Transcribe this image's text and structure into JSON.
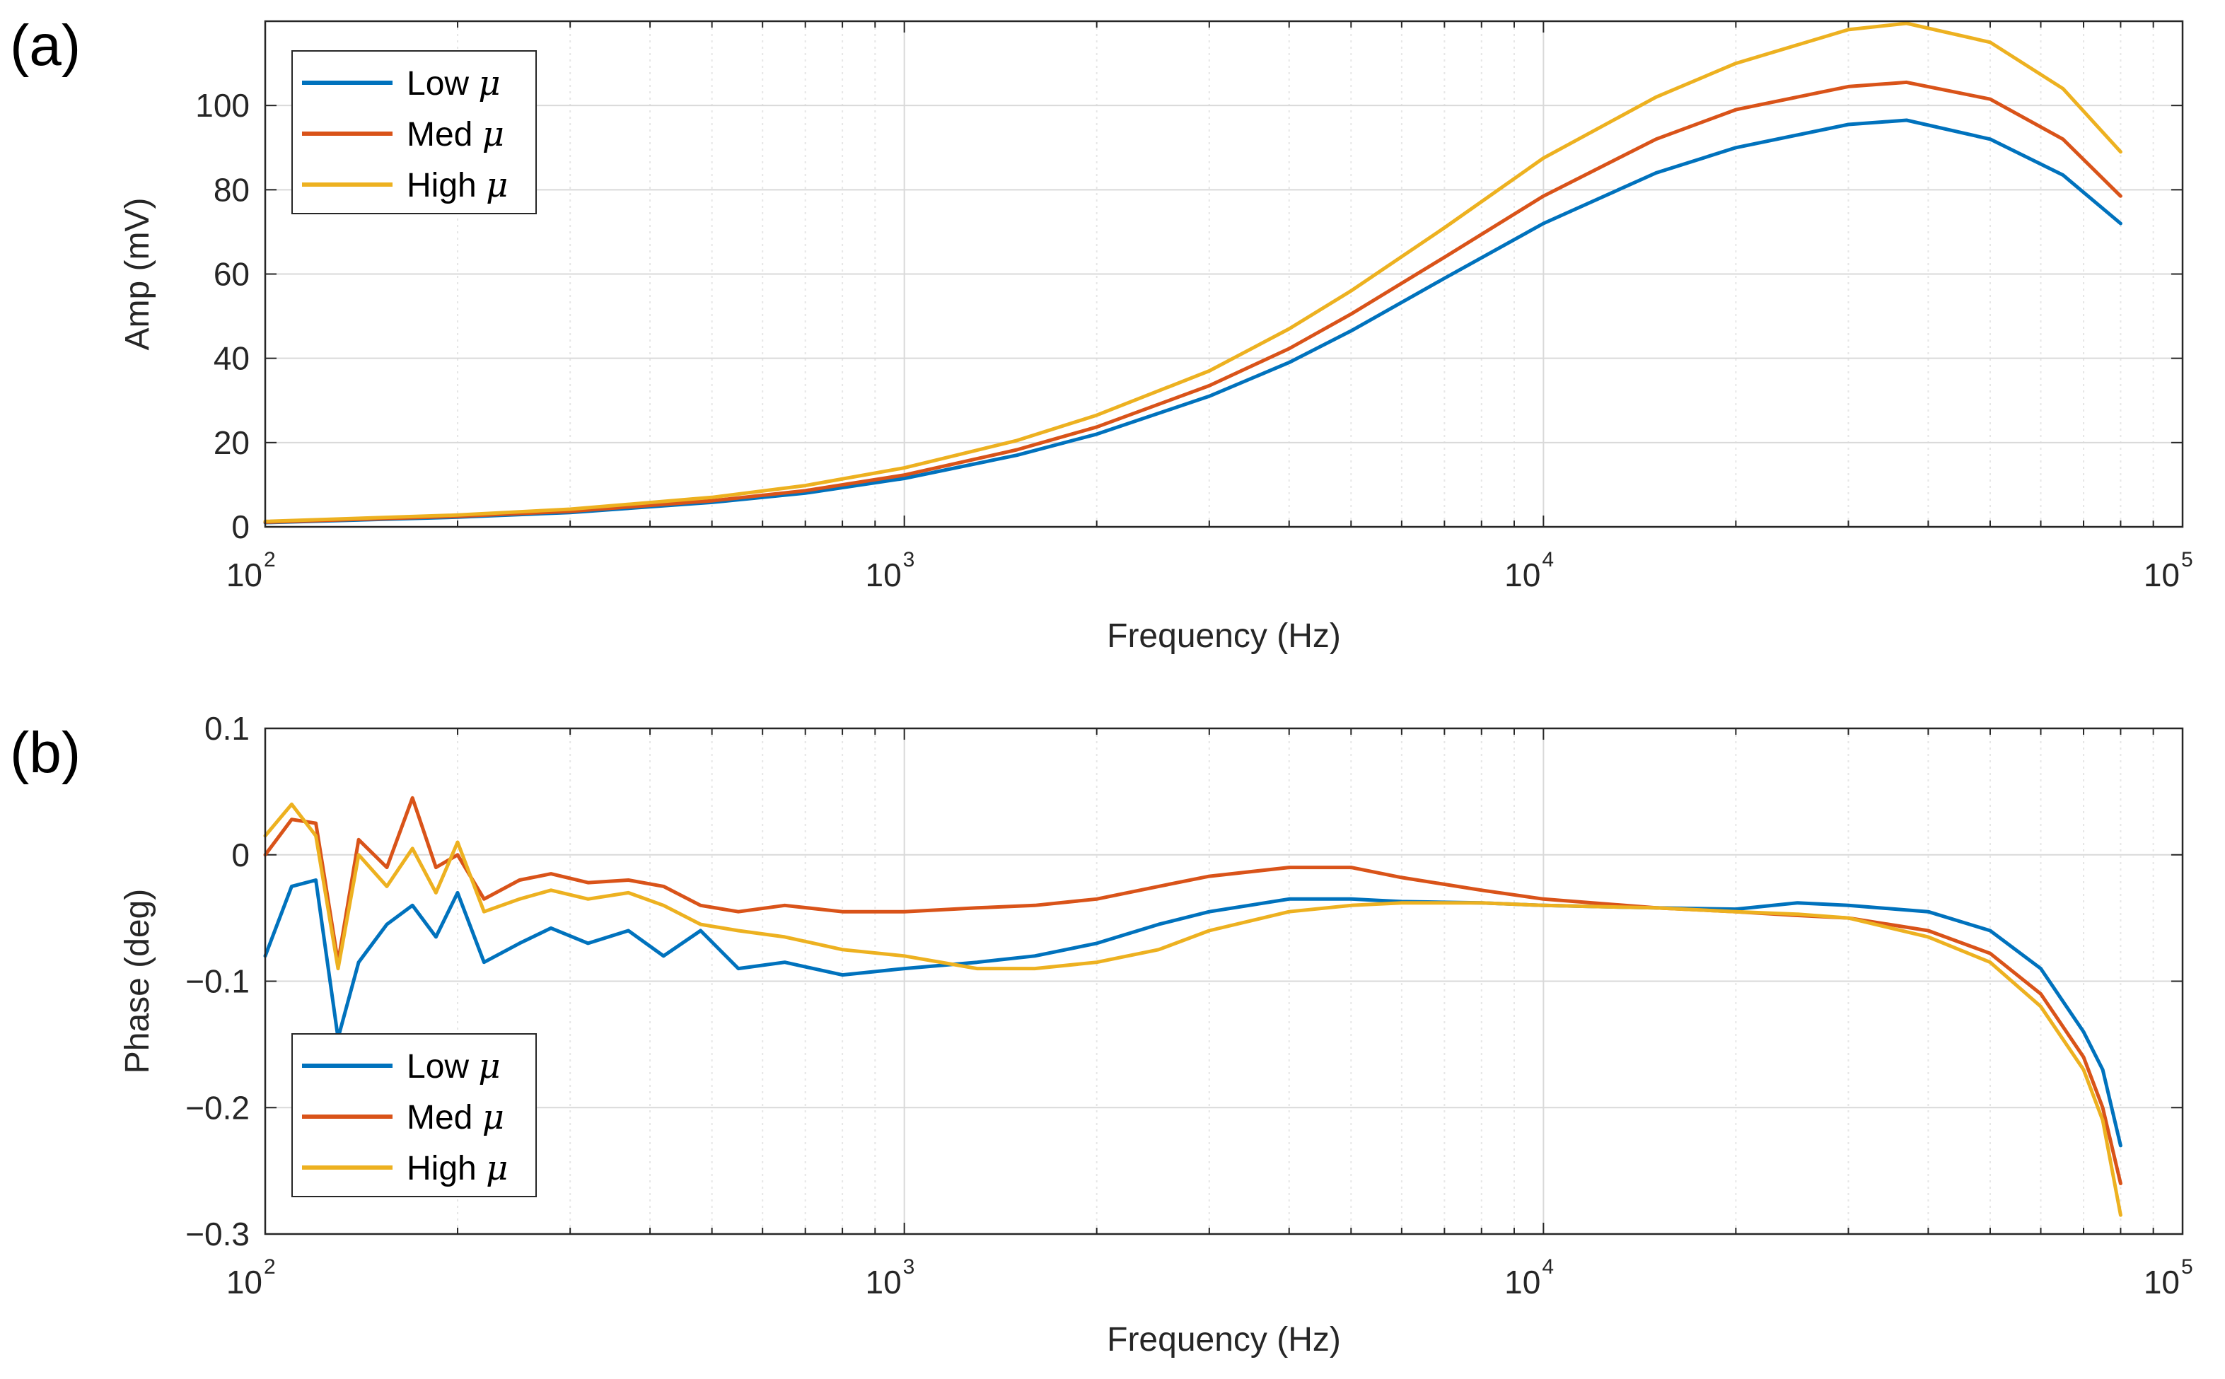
{
  "figure_labels": {
    "a": "(a)",
    "b": "(b)"
  },
  "chart_data": [
    {
      "type": "line",
      "panel": "(a)",
      "xscale": "log",
      "xlabel": "Frequency (Hz)",
      "ylabel": "Amp (mV)",
      "xlim": [
        100,
        100000
      ],
      "ylim": [
        0,
        120
      ],
      "grid": true,
      "x_ticks": [
        {
          "base": "10",
          "exp": "2"
        },
        {
          "base": "10",
          "exp": "3"
        },
        {
          "base": "10",
          "exp": "4"
        },
        {
          "base": "10",
          "exp": "5"
        }
      ],
      "y_tick_values": [
        0,
        20,
        40,
        60,
        80,
        100
      ],
      "y_tick_labels": [
        "0",
        "20",
        "40",
        "60",
        "80",
        "100"
      ],
      "legend": {
        "location": "top-left",
        "symbol": "μ"
      },
      "series": [
        {
          "name": "Low",
          "color": "#0072BD",
          "x": [
            100,
            200,
            300,
            500,
            700,
            1000,
            1500,
            2000,
            3000,
            4000,
            5000,
            7000,
            10000,
            15000,
            20000,
            30000,
            37000,
            50000,
            65000,
            80000
          ],
          "y": [
            1.0,
            2.3,
            3.4,
            5.8,
            8.0,
            11.5,
            17.0,
            22.0,
            31.0,
            39.0,
            46.5,
            59.0,
            72.0,
            84.0,
            90.0,
            95.5,
            96.5,
            92.0,
            83.5,
            72.0
          ]
        },
        {
          "name": "Med",
          "color": "#D95319",
          "x": [
            100,
            200,
            300,
            500,
            700,
            1000,
            1500,
            2000,
            3000,
            4000,
            5000,
            7000,
            10000,
            15000,
            20000,
            30000,
            37000,
            50000,
            65000,
            80000
          ],
          "y": [
            1.1,
            2.5,
            3.7,
            6.2,
            8.6,
            12.3,
            18.3,
            23.7,
            33.5,
            42.3,
            50.5,
            64.0,
            78.5,
            92.0,
            99.0,
            104.5,
            105.5,
            101.5,
            92.0,
            78.5
          ]
        },
        {
          "name": "High",
          "color": "#EDB120",
          "x": [
            100,
            200,
            300,
            500,
            700,
            1000,
            1500,
            2000,
            3000,
            4000,
            5000,
            7000,
            10000,
            15000,
            20000,
            30000,
            37000,
            50000,
            65000,
            80000
          ],
          "y": [
            1.3,
            2.8,
            4.2,
            7.0,
            9.8,
            14.0,
            20.5,
            26.5,
            37.0,
            47.0,
            56.0,
            71.0,
            87.5,
            102.0,
            110.0,
            118.0,
            119.5,
            115.0,
            104.0,
            89.0
          ]
        }
      ]
    },
    {
      "type": "line",
      "panel": "(b)",
      "xscale": "log",
      "xlabel": "Frequency (Hz)",
      "ylabel": "Phase (deg)",
      "xlim": [
        100,
        100000
      ],
      "ylim": [
        -0.3,
        0.1
      ],
      "grid": true,
      "x_ticks": [
        {
          "base": "10",
          "exp": "2"
        },
        {
          "base": "10",
          "exp": "3"
        },
        {
          "base": "10",
          "exp": "4"
        },
        {
          "base": "10",
          "exp": "5"
        }
      ],
      "y_tick_values": [
        -0.3,
        -0.2,
        -0.1,
        0,
        0.1
      ],
      "y_tick_labels": [
        "−0.3",
        "−0.2",
        "−0.1",
        "0",
        "0.1"
      ],
      "legend": {
        "location": "bottom-left",
        "symbol": "μ"
      },
      "series": [
        {
          "name": "Low",
          "color": "#0072BD",
          "x": [
            100,
            110,
            120,
            130,
            140,
            155,
            170,
            185,
            200,
            220,
            250,
            280,
            320,
            370,
            420,
            480,
            550,
            650,
            800,
            1000,
            1300,
            1600,
            2000,
            2500,
            3000,
            4000,
            5000,
            6000,
            8000,
            10000,
            15000,
            20000,
            25000,
            30000,
            40000,
            50000,
            60000,
            70000,
            75000,
            80000
          ],
          "y": [
            -0.08,
            -0.025,
            -0.02,
            -0.145,
            -0.085,
            -0.055,
            -0.04,
            -0.065,
            -0.03,
            -0.085,
            -0.07,
            -0.058,
            -0.07,
            -0.06,
            -0.08,
            -0.06,
            -0.09,
            -0.085,
            -0.095,
            -0.09,
            -0.085,
            -0.08,
            -0.07,
            -0.055,
            -0.045,
            -0.035,
            -0.035,
            -0.037,
            -0.038,
            -0.04,
            -0.042,
            -0.043,
            -0.038,
            -0.04,
            -0.045,
            -0.06,
            -0.09,
            -0.14,
            -0.17,
            -0.23
          ]
        },
        {
          "name": "Med",
          "color": "#D95319",
          "x": [
            100,
            110,
            120,
            130,
            140,
            155,
            170,
            185,
            200,
            220,
            250,
            280,
            320,
            370,
            420,
            480,
            550,
            650,
            800,
            1000,
            1300,
            1600,
            2000,
            2500,
            3000,
            4000,
            5000,
            6000,
            8000,
            10000,
            15000,
            20000,
            25000,
            30000,
            40000,
            50000,
            60000,
            70000,
            75000,
            80000
          ],
          "y": [
            0.0,
            0.028,
            0.025,
            -0.085,
            0.012,
            -0.01,
            0.045,
            -0.01,
            0.0,
            -0.035,
            -0.02,
            -0.015,
            -0.022,
            -0.02,
            -0.025,
            -0.04,
            -0.045,
            -0.04,
            -0.045,
            -0.045,
            -0.042,
            -0.04,
            -0.035,
            -0.025,
            -0.017,
            -0.01,
            -0.01,
            -0.018,
            -0.028,
            -0.035,
            -0.042,
            -0.045,
            -0.048,
            -0.05,
            -0.06,
            -0.078,
            -0.11,
            -0.16,
            -0.2,
            -0.26
          ]
        },
        {
          "name": "High",
          "color": "#EDB120",
          "x": [
            100,
            110,
            120,
            130,
            140,
            155,
            170,
            185,
            200,
            220,
            250,
            280,
            320,
            370,
            420,
            480,
            550,
            650,
            800,
            1000,
            1300,
            1600,
            2000,
            2500,
            3000,
            4000,
            5000,
            6000,
            8000,
            10000,
            15000,
            20000,
            25000,
            30000,
            40000,
            50000,
            60000,
            70000,
            75000,
            80000
          ],
          "y": [
            0.015,
            0.04,
            0.015,
            -0.09,
            0.0,
            -0.025,
            0.005,
            -0.03,
            0.01,
            -0.045,
            -0.035,
            -0.028,
            -0.035,
            -0.03,
            -0.04,
            -0.055,
            -0.06,
            -0.065,
            -0.075,
            -0.08,
            -0.09,
            -0.09,
            -0.085,
            -0.075,
            -0.06,
            -0.045,
            -0.04,
            -0.038,
            -0.038,
            -0.04,
            -0.042,
            -0.045,
            -0.047,
            -0.05,
            -0.065,
            -0.085,
            -0.12,
            -0.17,
            -0.21,
            -0.285
          ]
        }
      ]
    }
  ]
}
